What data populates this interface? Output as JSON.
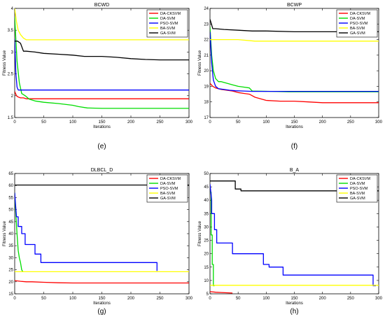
{
  "figure": {
    "series_colors": {
      "DA-CKSVM": "#ff0000",
      "DA-SVM": "#00dd00",
      "PSO-SVM": "#0000ff",
      "BA-SVM": "#ffff00",
      "GA-SVM": "#000000"
    }
  },
  "chart_data": [
    {
      "type": "line",
      "panel_label": "(e)",
      "title": "BCWD",
      "xlabel": "Iterations",
      "ylabel": "Fitness Value",
      "xlim": [
        0,
        300
      ],
      "ylim": [
        1.5,
        4
      ],
      "xticks": [
        0,
        50,
        100,
        150,
        200,
        250,
        300
      ],
      "yticks": [
        1.5,
        2,
        2.5,
        3,
        3.5,
        4
      ],
      "ytick_labels": [
        "1.5",
        "2",
        "2.5",
        "3",
        "3.5",
        "4"
      ],
      "grid": false,
      "legend": "top-right",
      "series": [
        {
          "name": "DA-CKSVM",
          "x": [
            0,
            3,
            6,
            10,
            15,
            20,
            30,
            50,
            300
          ],
          "y": [
            2.1,
            2.0,
            1.97,
            1.95,
            1.95,
            1.93,
            1.93,
            1.93,
            1.93
          ]
        },
        {
          "name": "DA-SVM",
          "x": [
            0,
            4,
            8,
            12,
            18,
            25,
            35,
            50,
            75,
            100,
            110,
            125,
            150,
            300
          ],
          "y": [
            3.8,
            2.8,
            2.3,
            2.05,
            2.0,
            1.92,
            1.88,
            1.85,
            1.82,
            1.78,
            1.75,
            1.72,
            1.71,
            1.71
          ]
        },
        {
          "name": "PSO-SVM",
          "x": [
            0,
            2,
            4,
            6,
            10,
            300
          ],
          "y": [
            3.3,
            2.5,
            2.2,
            2.13,
            2.13,
            2.13
          ]
        },
        {
          "name": "BA-SVM",
          "x": [
            0,
            3,
            6,
            10,
            15,
            20,
            300
          ],
          "y": [
            4.0,
            3.7,
            3.5,
            3.4,
            3.32,
            3.28,
            3.28
          ]
        },
        {
          "name": "GA-SVM",
          "x": [
            0,
            5,
            10,
            15,
            20,
            35,
            50,
            75,
            100,
            120,
            150,
            175,
            200,
            225,
            250,
            300
          ],
          "y": [
            3.25,
            3.25,
            3.2,
            3.02,
            3.02,
            3.0,
            2.97,
            2.95,
            2.93,
            2.9,
            2.9,
            2.88,
            2.85,
            2.83,
            2.82,
            2.82
          ]
        }
      ]
    },
    {
      "type": "line",
      "panel_label": "(f)",
      "title": "BCWP",
      "xlabel": "Iterations",
      "ylabel": "Fitness Value",
      "xlim": [
        0,
        300
      ],
      "ylim": [
        17,
        24
      ],
      "xticks": [
        0,
        50,
        100,
        150,
        200,
        250,
        300
      ],
      "yticks": [
        17,
        18,
        19,
        20,
        21,
        22,
        23,
        24
      ],
      "ytick_labels": [
        "17",
        "18",
        "19",
        "20",
        "21",
        "22",
        "23",
        "24"
      ],
      "grid": false,
      "legend": "top-right",
      "series": [
        {
          "name": "DA-CKSVM",
          "x": [
            0,
            5,
            10,
            20,
            30,
            40,
            50,
            60,
            70,
            80,
            100,
            125,
            150,
            175,
            200,
            225,
            250,
            300
          ],
          "y": [
            19.2,
            19.0,
            18.9,
            18.8,
            18.75,
            18.7,
            18.6,
            18.55,
            18.5,
            18.3,
            18.1,
            18.05,
            18.05,
            18.0,
            17.95,
            17.95,
            17.95,
            17.95
          ]
        },
        {
          "name": "DA-SVM",
          "x": [
            0,
            3,
            6,
            10,
            15,
            20,
            30,
            40,
            50,
            60,
            70,
            75,
            140,
            300
          ],
          "y": [
            22.8,
            21.0,
            20.0,
            19.5,
            19.3,
            19.3,
            19.2,
            19.1,
            19.0,
            18.95,
            18.9,
            18.7,
            18.65,
            18.65
          ]
        },
        {
          "name": "PSO-SVM",
          "x": [
            0,
            3,
            6,
            10,
            15,
            25,
            35,
            45,
            60,
            75,
            300
          ],
          "y": [
            22.5,
            20.5,
            19.4,
            19.0,
            18.85,
            18.8,
            18.75,
            18.72,
            18.7,
            18.68,
            18.68
          ]
        },
        {
          "name": "BA-SVM",
          "x": [
            0,
            5,
            50,
            80,
            300
          ],
          "y": [
            22.0,
            22.0,
            22.0,
            21.9,
            21.9
          ]
        },
        {
          "name": "GA-SVM",
          "x": [
            0,
            5,
            10,
            25,
            50,
            75,
            100,
            150,
            200,
            250,
            300
          ],
          "y": [
            23.3,
            22.7,
            22.7,
            22.65,
            22.6,
            22.55,
            22.55,
            22.5,
            22.5,
            22.5,
            22.5
          ]
        }
      ]
    },
    {
      "type": "line",
      "panel_label": "(g)",
      "title": "DLBCL_D",
      "xlabel": "Iterations",
      "ylabel": "Fitness Value",
      "xlim": [
        0,
        300
      ],
      "ylim": [
        15,
        65
      ],
      "xticks": [
        0,
        50,
        100,
        150,
        200,
        250,
        300
      ],
      "yticks": [
        15,
        20,
        25,
        30,
        35,
        40,
        45,
        50,
        55,
        60,
        65
      ],
      "ytick_labels": [
        "15",
        "20",
        "25",
        "30",
        "35",
        "40",
        "45",
        "50",
        "55",
        "60",
        "65"
      ],
      "grid": false,
      "legend": "top-right",
      "series": [
        {
          "name": "DA-CKSVM",
          "x": [
            0,
            10,
            20,
            30,
            50,
            75,
            100,
            150,
            200,
            300
          ],
          "y": [
            20.5,
            20.2,
            20.0,
            20.0,
            19.8,
            19.6,
            19.5,
            19.5,
            19.5,
            19.5
          ]
        },
        {
          "name": "DA-SVM",
          "x": [
            0,
            2,
            4,
            6,
            8,
            10,
            12,
            14
          ],
          "y": [
            57,
            48,
            40,
            33,
            30,
            28,
            25,
            24.2
          ]
        },
        {
          "name": "PSO-SVM",
          "x": [
            0,
            3,
            6,
            6,
            12,
            12,
            18,
            18,
            35,
            35,
            45,
            45,
            245,
            245
          ],
          "y": [
            57,
            47,
            47,
            43,
            43,
            40,
            40,
            35.5,
            35.5,
            31.5,
            31.5,
            28,
            28,
            24.5
          ]
        },
        {
          "name": "BA-SVM",
          "x": [
            0,
            5,
            10,
            300
          ],
          "y": [
            24.2,
            24.2,
            24.2,
            24.2
          ]
        },
        {
          "name": "GA-SVM",
          "x": [
            0,
            300
          ],
          "y": [
            60.2,
            60.2
          ]
        }
      ]
    },
    {
      "type": "line",
      "panel_label": "(h)",
      "title": "B_A",
      "xlabel": "Iterations",
      "ylabel": "Fitness Value",
      "xlim": [
        0,
        300
      ],
      "ylim": [
        5,
        50
      ],
      "xticks": [
        0,
        50,
        100,
        150,
        200,
        250,
        300
      ],
      "yticks": [
        5,
        10,
        15,
        20,
        25,
        30,
        35,
        40,
        45,
        50
      ],
      "ytick_labels": [
        "5",
        "10",
        "15",
        "20",
        "25",
        "30",
        "35",
        "40",
        "45",
        "50"
      ],
      "grid": false,
      "legend": "top-right",
      "series": [
        {
          "name": "DA-CKSVM",
          "x": [
            0,
            10,
            20,
            30,
            40
          ],
          "y": [
            5.8,
            5.6,
            5.5,
            5.4,
            5.3
          ]
        },
        {
          "name": "DA-SVM",
          "x": [
            0,
            2,
            2,
            4,
            4,
            6,
            6,
            8
          ],
          "y": [
            43,
            43,
            27,
            27,
            16,
            16,
            8,
            8
          ]
        },
        {
          "name": "PSO-SVM",
          "x": [
            0,
            3,
            3,
            8,
            8,
            12,
            12,
            40,
            40,
            95,
            95,
            105,
            105,
            130,
            130,
            290,
            290,
            295
          ],
          "y": [
            46,
            40,
            35,
            35,
            29,
            29,
            24,
            24,
            20,
            20,
            16,
            16,
            15,
            15,
            12,
            12,
            8,
            8
          ]
        },
        {
          "name": "BA-SVM",
          "x": [
            0,
            8,
            300
          ],
          "y": [
            8.2,
            8.2,
            8.2
          ]
        },
        {
          "name": "GA-SVM",
          "x": [
            0,
            45,
            45,
            55,
            55,
            300
          ],
          "y": [
            47.2,
            47.2,
            44.2,
            44.2,
            43.5,
            43.5
          ]
        }
      ]
    }
  ]
}
